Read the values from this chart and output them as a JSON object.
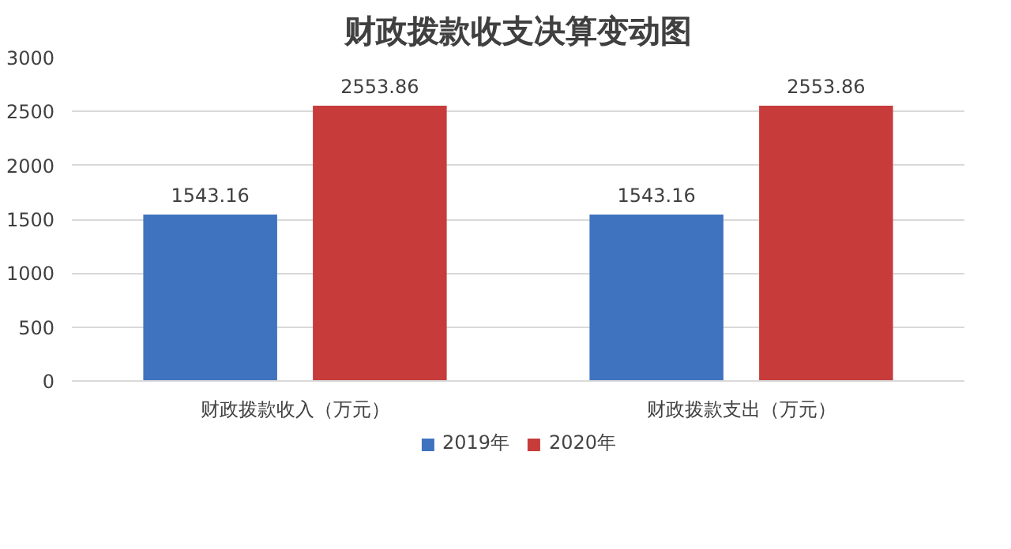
{
  "chart_data": {
    "type": "bar",
    "title": "财政拨款收支决算变动图",
    "categories": [
      "财政拨款收入（万元）",
      "财政拨款支出（万元）"
    ],
    "series": [
      {
        "name": "2019年",
        "color": "#3f73bf",
        "values": [
          1543.16,
          1543.16
        ]
      },
      {
        "name": "2020年",
        "color": "#c73b3b",
        "values": [
          2553.86,
          2553.86
        ]
      }
    ],
    "ylim": [
      0,
      3000
    ],
    "yticks": [
      0,
      500,
      1000,
      1500,
      2000,
      2500,
      3000
    ],
    "grid": "y",
    "legend": "bottom",
    "data_labels": true
  }
}
